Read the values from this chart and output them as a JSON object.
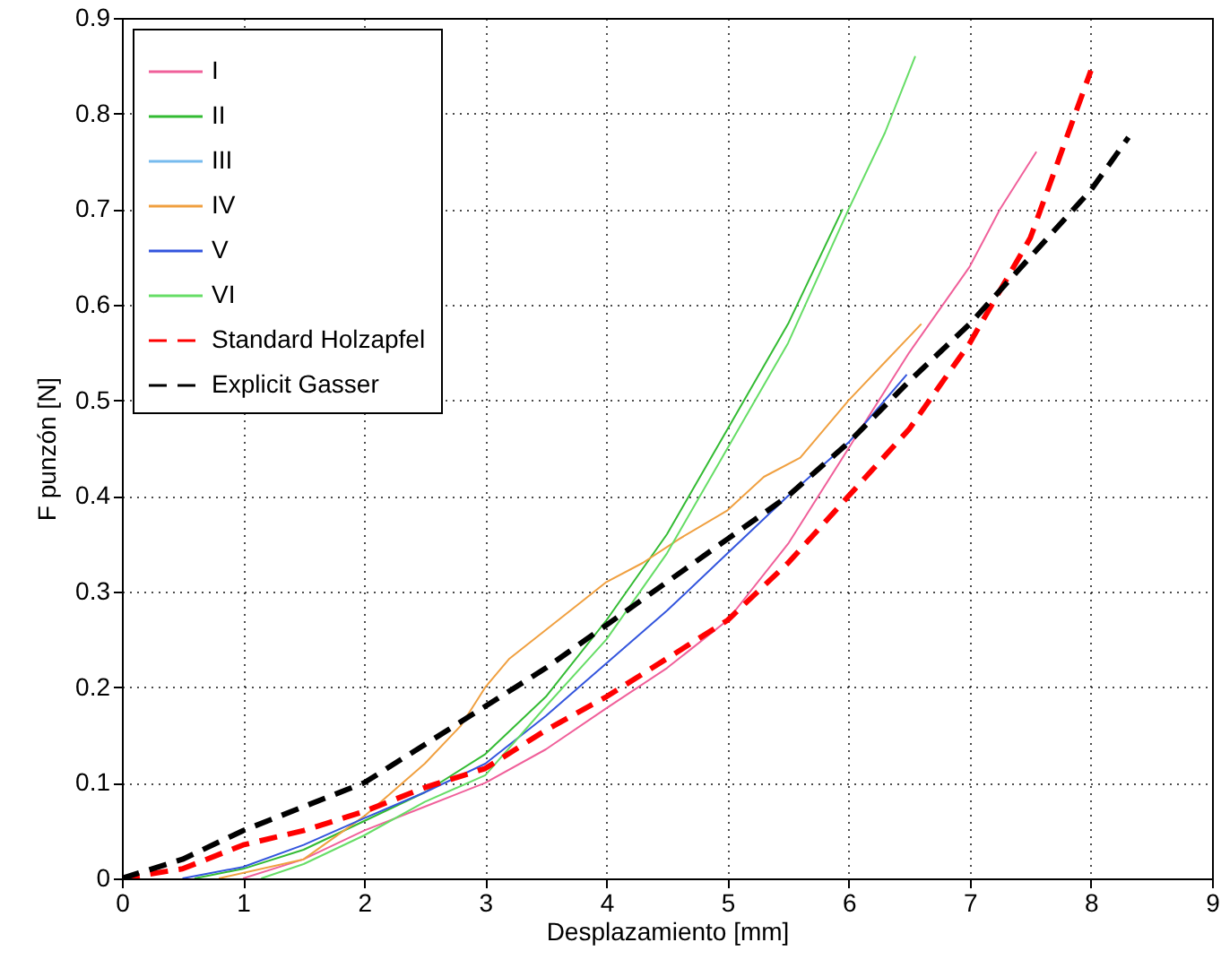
{
  "chart_data": {
    "type": "line",
    "xlabel": "Desplazamiento [mm]",
    "ylabel": "F punzón [N]",
    "xlim": [
      0,
      9
    ],
    "ylim": [
      0,
      0.9
    ],
    "xticks": [
      0,
      1,
      2,
      3,
      4,
      5,
      6,
      7,
      8,
      9
    ],
    "yticks": [
      0,
      0.1,
      0.2,
      0.3,
      0.4,
      0.5,
      0.6,
      0.7,
      0.8,
      0.9
    ],
    "grid": true,
    "legend": "top left",
    "series": [
      {
        "name": "I",
        "color": "#f0609a",
        "line_style": "solid",
        "x": [
          1.0,
          1.5,
          2,
          2.5,
          3,
          3.5,
          4,
          4.5,
          5,
          5.5,
          6,
          6.5,
          7,
          7.25,
          7.55
        ],
        "values": [
          0,
          0.02,
          0.05,
          0.075,
          0.1,
          0.135,
          0.178,
          0.22,
          0.27,
          0.35,
          0.45,
          0.55,
          0.64,
          0.7,
          0.76
        ]
      },
      {
        "name": "II",
        "color": "#33bb33",
        "line_style": "solid",
        "x": [
          0.6,
          1,
          1.5,
          2,
          2.5,
          3,
          3.5,
          4,
          4.5,
          5,
          5.5,
          5.95
        ],
        "values": [
          0,
          0.01,
          0.03,
          0.06,
          0.09,
          0.13,
          0.19,
          0.27,
          0.36,
          0.47,
          0.58,
          0.7
        ]
      },
      {
        "name": "III",
        "color": "#77bbee",
        "line_style": "solid"
      },
      {
        "name": "IV",
        "color": "#f0a040",
        "line_style": "solid",
        "x": [
          0.8,
          1.5,
          2,
          2.5,
          2.8,
          3,
          3.2,
          3.5,
          3.8,
          4,
          4.3,
          4.6,
          5,
          5.3,
          5.6,
          6,
          6.3,
          6.6
        ],
        "values": [
          0,
          0.02,
          0.065,
          0.12,
          0.16,
          0.2,
          0.23,
          0.26,
          0.29,
          0.31,
          0.33,
          0.355,
          0.385,
          0.42,
          0.44,
          0.5,
          0.54,
          0.58
        ]
      },
      {
        "name": "V",
        "color": "#3355dd",
        "line_style": "solid",
        "x": [
          0.5,
          1,
          1.5,
          2,
          2.5,
          3,
          3.5,
          4,
          4.5,
          5,
          5.5,
          6,
          6.48
        ],
        "values": [
          0,
          0.012,
          0.035,
          0.063,
          0.09,
          0.12,
          0.17,
          0.225,
          0.28,
          0.34,
          0.4,
          0.456,
          0.527
        ]
      },
      {
        "name": "VI",
        "color": "#66dd66",
        "line_style": "solid",
        "x": [
          1.15,
          1.5,
          2,
          2.5,
          3,
          3.5,
          4,
          4.5,
          5,
          5.5,
          6,
          6.3,
          6.55
        ],
        "values": [
          0,
          0.015,
          0.045,
          0.08,
          0.108,
          0.18,
          0.25,
          0.34,
          0.45,
          0.56,
          0.7,
          0.78,
          0.86
        ]
      },
      {
        "name": "Standard Holzapfel",
        "color": "#ff0000",
        "line_style": "dashed",
        "x": [
          0,
          0.5,
          1,
          1.5,
          2,
          2.5,
          3,
          3.5,
          4,
          4.5,
          5,
          5.5,
          6,
          6.5,
          7,
          7.5,
          8
        ],
        "values": [
          0,
          0.01,
          0.035,
          0.05,
          0.07,
          0.095,
          0.115,
          0.155,
          0.19,
          0.23,
          0.27,
          0.33,
          0.4,
          0.47,
          0.56,
          0.67,
          0.845
        ]
      },
      {
        "name": "Explicit Gasser",
        "color": "#000000",
        "line_style": "dashed",
        "x": [
          0,
          0.5,
          1,
          1.5,
          2,
          2.5,
          3,
          3.5,
          4,
          4.5,
          5,
          5.5,
          6,
          6.5,
          7,
          7.5,
          8,
          8.31
        ],
        "values": [
          0,
          0.02,
          0.05,
          0.075,
          0.1,
          0.14,
          0.18,
          0.22,
          0.265,
          0.31,
          0.355,
          0.4,
          0.456,
          0.52,
          0.58,
          0.65,
          0.72,
          0.775
        ]
      }
    ]
  }
}
